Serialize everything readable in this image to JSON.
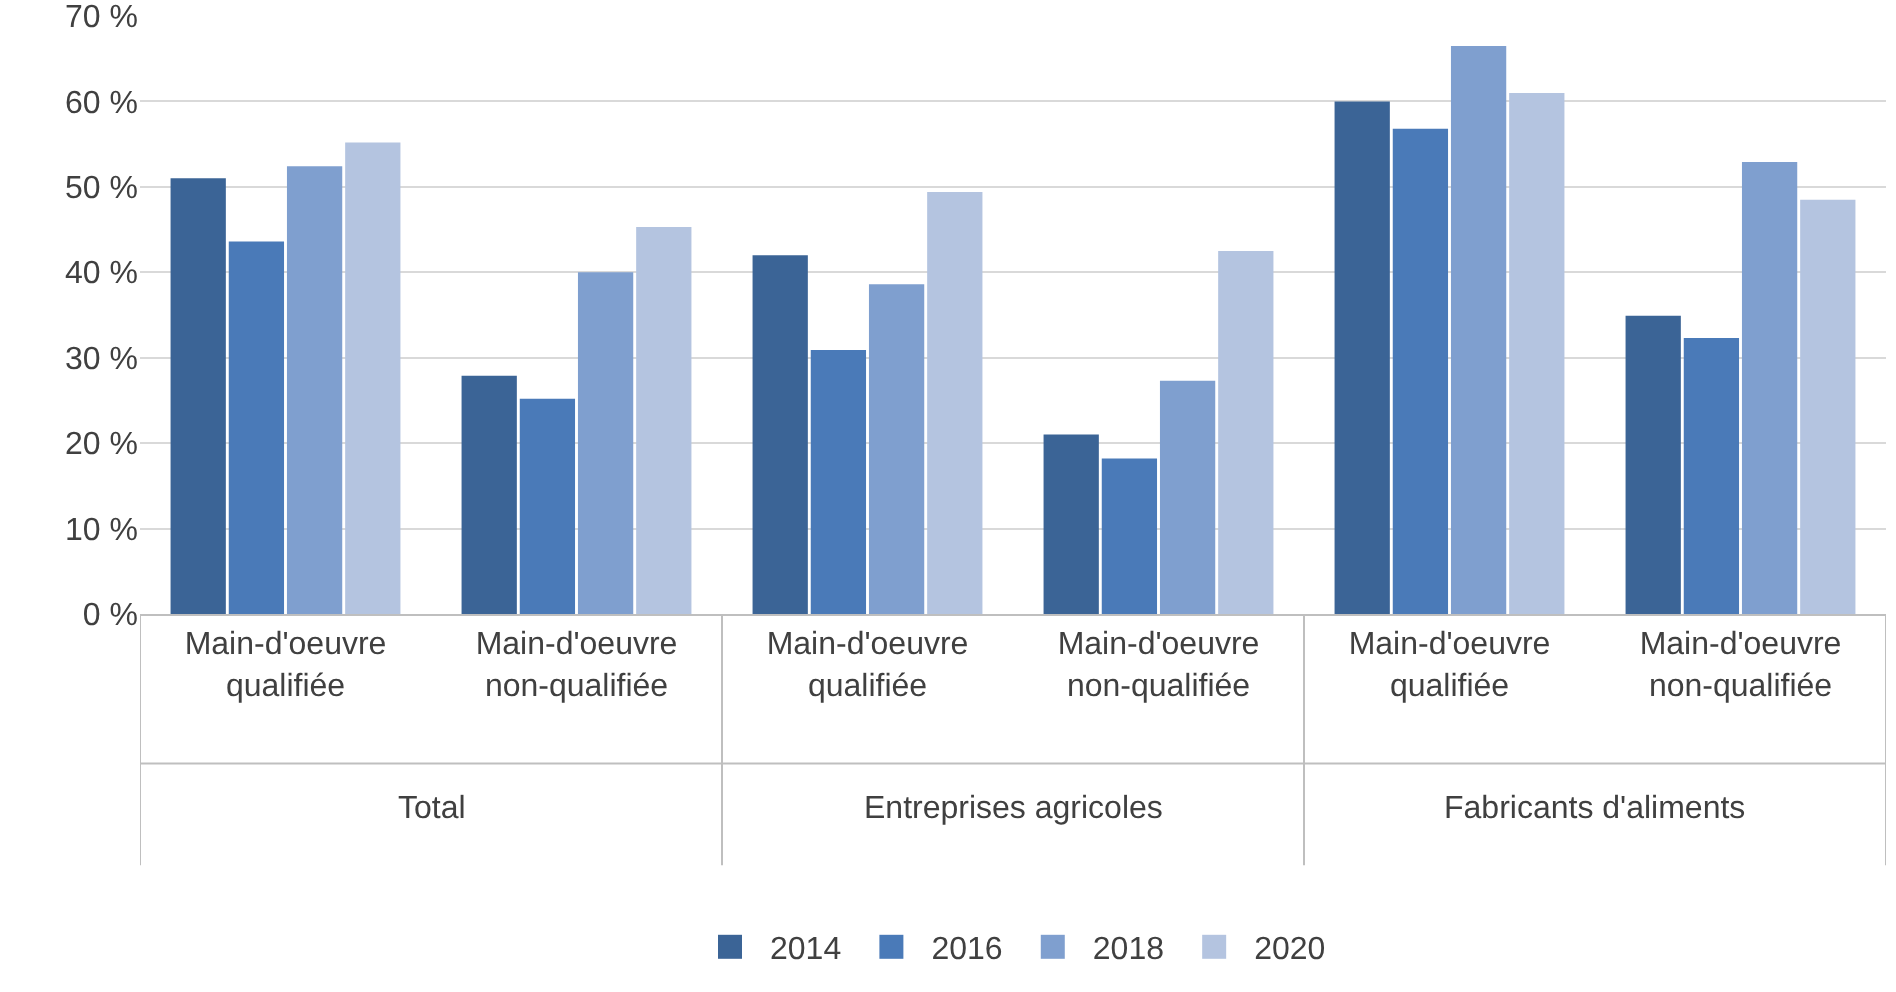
{
  "chart_data": {
    "type": "bar",
    "categories": [
      "Main-d'oeuvre qualifiée",
      "Main-d'oeuvre non-qualifiée",
      "Main-d'oeuvre qualifiée",
      "Main-d'oeuvre non-qualifiée",
      "Main-d'oeuvre qualifiée",
      "Main-d'oeuvre non-qualifiée"
    ],
    "series": [
      {
        "name": "2014",
        "color": "#3b6496",
        "values": [
          51.0,
          27.9,
          42.0,
          21.0,
          60.0,
          34.9
        ]
      },
      {
        "name": "2016",
        "color": "#4a7ab8",
        "values": [
          43.6,
          25.2,
          30.9,
          18.2,
          56.8,
          32.3
        ]
      },
      {
        "name": "2018",
        "color": "#7f9fcf",
        "values": [
          52.4,
          40.0,
          38.6,
          27.3,
          66.5,
          52.9
        ]
      },
      {
        "name": "2020",
        "color": "#b4c4e0",
        "values": [
          55.2,
          45.3,
          49.4,
          42.5,
          61.0,
          48.5
        ]
      }
    ],
    "annotations": [
      "Total",
      "Entreprises agricoles",
      "Fabricants d'aliments"
    ],
    "ylim": [
      0,
      70
    ],
    "yticks": [
      {
        "value": 0,
        "label": "0 %"
      },
      {
        "value": 10,
        "label": "10 %"
      },
      {
        "value": 20,
        "label": "20 %"
      },
      {
        "value": 30,
        "label": "30 %"
      },
      {
        "value": 40,
        "label": "40 %"
      },
      {
        "value": 50,
        "label": "50 %"
      },
      {
        "value": 60,
        "label": "60 %"
      },
      {
        "value": 70,
        "label": "70 %"
      }
    ],
    "grid": "y",
    "legend": "bottom"
  }
}
